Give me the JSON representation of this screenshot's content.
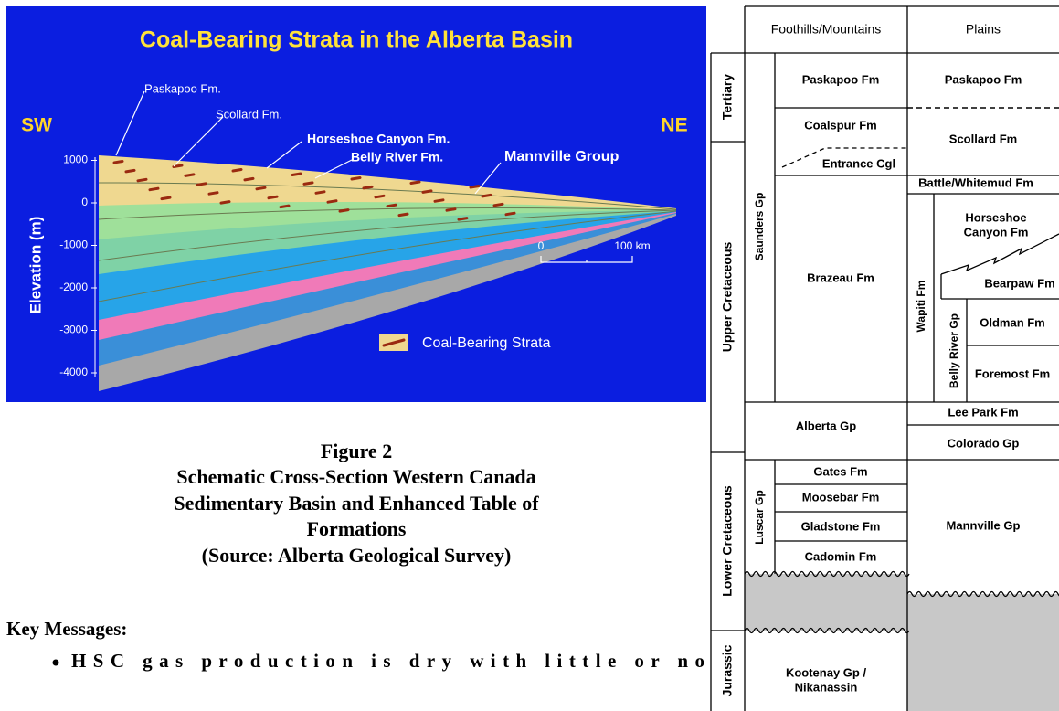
{
  "figure": {
    "title": "Coal-Bearing Strata in the Alberta Basin",
    "left_label": "SW",
    "right_label": "NE",
    "labels": [
      "Paskapoo Fm.",
      "Scollard Fm.",
      "Horseshoe Canyon Fm.",
      "Belly River Fm.",
      "Mannville Group"
    ],
    "y_axis_label": "Elevation (m)",
    "y_ticks": [
      1000,
      0,
      -1000,
      -2000,
      -3000,
      -4000
    ],
    "scale_labels": [
      "0",
      "100 km"
    ],
    "legend": "Coal-Bearing Strata"
  },
  "caption": {
    "figure_number": "Figure 2",
    "lines": [
      "Schematic Cross-Section Western Canada",
      "Sedimentary Basin and Enhanced Table of",
      "Formations",
      "(Source: Alberta Geological Survey)"
    ]
  },
  "key_messages": {
    "heading": "Key Messages:",
    "bullets": [
      "HSC gas production is dry with little or no"
    ]
  },
  "table": {
    "headers": [
      "Foothills/Mountains",
      "Plains"
    ],
    "periods": [
      "Tertiary",
      "Upper Cretaceous",
      "Lower Cretaceous",
      "Jurassic"
    ],
    "foothills": {
      "saunders": "Saunders Gp",
      "paskapoo": "Paskapoo Fm",
      "coalspur": "Coalspur Fm",
      "entrance": "Entrance Cgl",
      "brazeau": "Brazeau Fm",
      "alberta": "Alberta Gp",
      "luscar": "Luscar Gp",
      "gates": "Gates Fm",
      "moosebar": "Moosebar Fm",
      "gladstone": "Gladstone Fm",
      "cadomin": "Cadomin Fm",
      "kootenay": [
        "Kootenay Gp /",
        "Nikanassin"
      ]
    },
    "plains": {
      "paskapoo": "Paskapoo Fm",
      "scollard": "Scollard Fm",
      "battle": "Battle/Whitemud Fm",
      "wapiti": "Wapiti Fm",
      "horseshoe": [
        "Horseshoe",
        "Canyon Fm"
      ],
      "bearpaw": "Bearpaw Fm",
      "belly_river": "Belly River Gp",
      "oldman": "Oldman Fm",
      "foremost": "Foremost Fm",
      "lee_park": "Lee Park Fm",
      "colorado": "Colorado Gp",
      "mannville": "Mannville Gp"
    }
  }
}
